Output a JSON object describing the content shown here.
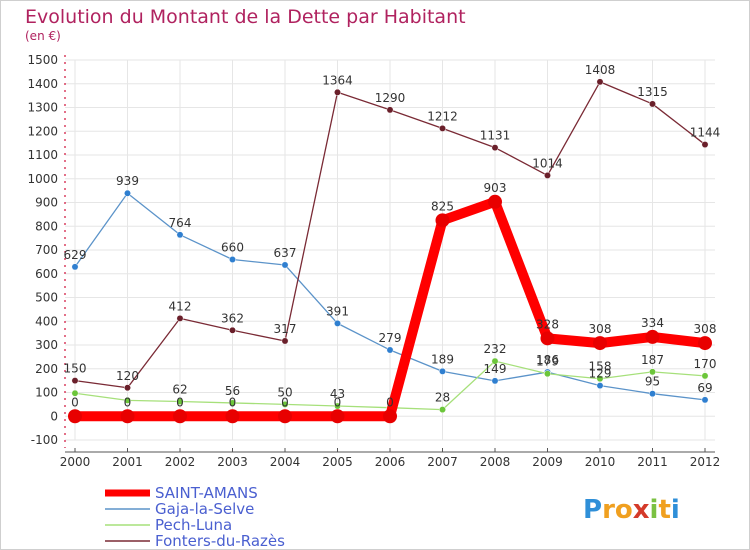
{
  "chart_data": {
    "type": "line",
    "title": "Evolution du Montant de la Dette par Habitant",
    "subtitle": "(en €)",
    "x": [
      "2000",
      "2001",
      "2002",
      "2003",
      "2004",
      "2005",
      "2006",
      "2007",
      "2008",
      "2009",
      "2010",
      "2011",
      "2012"
    ],
    "ylim": [
      -100,
      1500
    ],
    "yticks": [
      -100,
      0,
      100,
      200,
      300,
      400,
      500,
      600,
      700,
      800,
      900,
      1000,
      1100,
      1200,
      1300,
      1400,
      1500
    ],
    "grid": true,
    "legend_position": "bottom-left",
    "series": [
      {
        "name": "Gaja-la-Selve",
        "color": "#5b93c9",
        "marker": "#2f7fd0",
        "values": [
          629,
          939,
          764,
          660,
          637,
          391,
          279,
          189,
          149,
          186,
          129,
          95,
          69
        ],
        "labels": [
          "629",
          "939",
          "764",
          "660",
          "637",
          "391",
          "279",
          "189",
          "149",
          "186",
          "129",
          "95",
          "69"
        ]
      },
      {
        "name": "Pech-Luna",
        "color": "#a6e07a",
        "marker": "#6cc63a",
        "values": [
          97,
          67,
          62,
          56,
          50,
          43,
          36,
          28,
          232,
          179,
          158,
          187,
          170
        ],
        "labels": [
          "",
          "",
          "62",
          "56",
          "50",
          "43",
          "",
          "28",
          "232",
          "179",
          "158",
          "187",
          "170"
        ]
      },
      {
        "name": "Fonters-du-Razès",
        "color": "#7a2a35",
        "marker": "#6a1f2a",
        "values": [
          150,
          120,
          412,
          362,
          317,
          1364,
          1290,
          1212,
          1131,
          1014,
          1408,
          1315,
          1144
        ],
        "labels": [
          "150",
          "120",
          "412",
          "362",
          "317",
          "1364",
          "1290",
          "1212",
          "1131",
          "1014",
          "1408",
          "1315",
          "1144"
        ]
      },
      {
        "name": "SAINT-AMANS",
        "color": "#ff0000",
        "marker": "#e80000",
        "thick": true,
        "values": [
          0,
          0,
          0,
          0,
          0,
          0,
          0,
          825,
          903,
          328,
          308,
          334,
          308
        ],
        "labels": [
          "0",
          "0",
          "0",
          "0",
          "0",
          "0",
          "0",
          "825",
          "903",
          "328",
          "308",
          "334",
          "308"
        ]
      }
    ],
    "legend": [
      {
        "name": "SAINT-AMANS",
        "color": "#ff0000",
        "text_color": "#4a5fd0",
        "thick": true
      },
      {
        "name": "Gaja-la-Selve",
        "color": "#5b93c9",
        "text_color": "#4a5fd0"
      },
      {
        "name": "Pech-Luna",
        "color": "#a6e07a",
        "text_color": "#4a5fd0"
      },
      {
        "name": "Fonters-du-Razès",
        "color": "#7a2a35",
        "text_color": "#4a5fd0"
      }
    ]
  },
  "logo": {
    "letters": [
      "P",
      "r",
      "o",
      "x",
      "i",
      "t",
      "i"
    ],
    "colors": [
      "#2f8fd8",
      "#f0a020",
      "#f0a020",
      "#d43a2a",
      "#7bc142",
      "#f0a020",
      "#2f8fd8"
    ]
  }
}
